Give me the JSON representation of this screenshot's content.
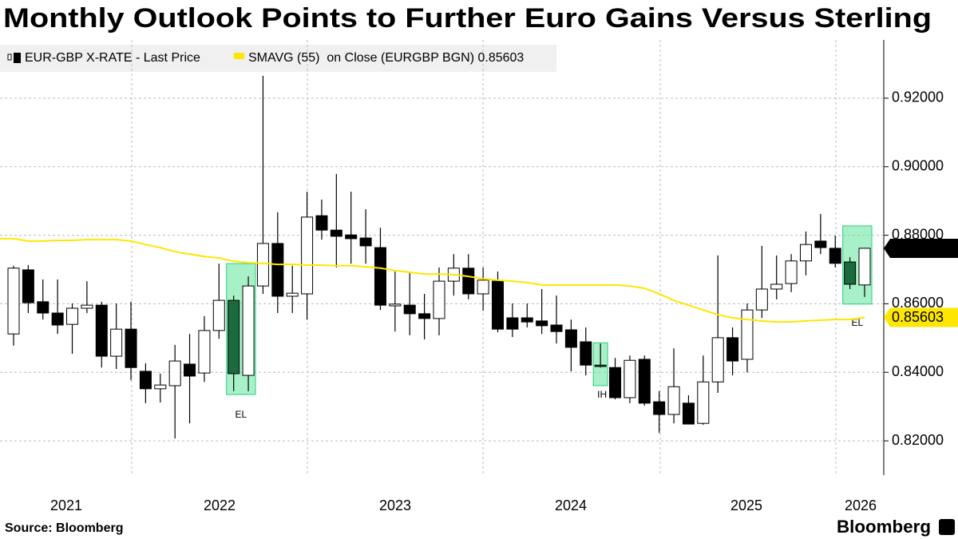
{
  "chart_data": {
    "type": "candlestick",
    "title": "Monthly Outlook Points to Further Euro Gains Versus Sterling",
    "source": "Source: Bloomberg",
    "brand": "Bloomberg",
    "xlabels": [
      "2021",
      "2022",
      "2023",
      "2024",
      "2025",
      "2026"
    ],
    "ylim": [
      0.81,
      0.937
    ],
    "yticks": [
      {
        "value": 0.82,
        "label": "0.82000"
      },
      {
        "value": 0.84,
        "label": "0.84000"
      },
      {
        "value": 0.86,
        "label": "0.86000"
      },
      {
        "value": 0.88,
        "label": "0.88000"
      },
      {
        "value": 0.9,
        "label": "0.90000"
      },
      {
        "value": 0.92,
        "label": "0.92000"
      }
    ],
    "grid": true,
    "annotations": [
      "EL",
      "IH",
      "EL"
    ],
    "series": [
      {
        "name": "EUR-GBP X-RATE - Last Price",
        "up_color": "#ffffff",
        "down_color": "#000000",
        "highlight_color": "#1c6b3c",
        "open": [
          0.8512,
          0.8699,
          0.8606,
          0.8573,
          0.854,
          0.8587,
          0.8596,
          0.8447,
          0.8526,
          0.8403,
          0.8352,
          0.8361,
          0.8424,
          0.8398,
          0.8522,
          0.861,
          0.8391,
          0.8652,
          0.8776,
          0.8622,
          0.8629,
          0.8857,
          0.8815,
          0.8801,
          0.8792,
          0.8764,
          0.8594,
          0.8596,
          0.8571,
          0.8557,
          0.8666,
          0.8704,
          0.8629,
          0.8666,
          0.8559,
          0.8559,
          0.855,
          0.8538,
          0.8524,
          0.8489,
          0.8421,
          0.8414,
          0.8326,
          0.8438,
          0.8314,
          0.8277,
          0.831,
          0.8251,
          0.8372,
          0.8501,
          0.8438,
          0.8582,
          0.8643,
          0.8659,
          0.8725,
          0.8783,
          0.8762,
          0.8722,
          0.8655
        ],
        "high": [
          0.8711,
          0.8713,
          0.8671,
          0.8671,
          0.8601,
          0.8666,
          0.8606,
          0.8601,
          0.8606,
          0.8426,
          0.8396,
          0.848,
          0.8512,
          0.8564,
          0.8717,
          0.8624,
          0.868,
          0.9265,
          0.8867,
          0.8711,
          0.8927,
          0.8904,
          0.8979,
          0.8927,
          0.8876,
          0.8822,
          0.8694,
          0.8694,
          0.8629,
          0.8706,
          0.8745,
          0.8745,
          0.8706,
          0.8694,
          0.8601,
          0.8601,
          0.8643,
          0.8624,
          0.8554,
          0.8531,
          0.8484,
          0.8442,
          0.8449,
          0.8449,
          0.8345,
          0.847,
          0.8333,
          0.8449,
          0.8741,
          0.8531,
          0.8601,
          0.8769,
          0.8741,
          0.8745,
          0.8811,
          0.8862,
          0.8799,
          0.8736,
          0.8762
        ],
        "low": [
          0.8478,
          0.8573,
          0.8554,
          0.8512,
          0.8454,
          0.8573,
          0.8414,
          0.841,
          0.8377,
          0.831,
          0.8312,
          0.8207,
          0.8251,
          0.8372,
          0.8498,
          0.8345,
          0.8345,
          0.8629,
          0.8573,
          0.8573,
          0.8554,
          0.8787,
          0.8706,
          0.8717,
          0.8717,
          0.8582,
          0.8519,
          0.8508,
          0.8496,
          0.8508,
          0.8624,
          0.8613,
          0.858,
          0.8517,
          0.8503,
          0.8531,
          0.8512,
          0.8484,
          0.8403,
          0.8391,
          0.8414,
          0.8321,
          0.831,
          0.8303,
          0.8223,
          0.8251,
          0.8249,
          0.8247,
          0.834,
          0.8391,
          0.84,
          0.8559,
          0.8613,
          0.8634,
          0.8683,
          0.8745,
          0.8706,
          0.8643,
          0.862
        ],
        "close": [
          0.8704,
          0.8603,
          0.8573,
          0.8538,
          0.8587,
          0.8596,
          0.8447,
          0.8526,
          0.8414,
          0.8352,
          0.8363,
          0.8433,
          0.8389,
          0.8522,
          0.861,
          0.8396,
          0.8652,
          0.8776,
          0.8622,
          0.8631,
          0.8853,
          0.8815,
          0.8797,
          0.879,
          0.8769,
          0.8596,
          0.8599,
          0.8571,
          0.8557,
          0.8666,
          0.8704,
          0.8629,
          0.8669,
          0.8526,
          0.8526,
          0.8547,
          0.8536,
          0.8519,
          0.8473,
          0.8421,
          0.8417,
          0.8326,
          0.8435,
          0.831,
          0.8277,
          0.8358,
          0.8249,
          0.8372,
          0.8501,
          0.8433,
          0.8582,
          0.8643,
          0.8657,
          0.8725,
          0.8773,
          0.8764,
          0.8718,
          0.8657,
          0.8762
        ],
        "last": 0.87617
      },
      {
        "name": "SMAVG (55)  on Close (EURGBP BGN) 0.85603",
        "color": "#ffe600",
        "values": [
          0.879,
          0.8783,
          0.8783,
          0.8785,
          0.8785,
          0.8787,
          0.8787,
          0.8787,
          0.8783,
          0.8773,
          0.8764,
          0.8752,
          0.8745,
          0.8738,
          0.8734,
          0.8724,
          0.872,
          0.8718,
          0.8715,
          0.8715,
          0.8713,
          0.8713,
          0.8711,
          0.8711,
          0.8708,
          0.8704,
          0.8697,
          0.8692,
          0.8687,
          0.8687,
          0.8685,
          0.868,
          0.8673,
          0.8669,
          0.8666,
          0.8662,
          0.8655,
          0.8655,
          0.8655,
          0.8655,
          0.8655,
          0.8655,
          0.8652,
          0.8645,
          0.8629,
          0.861,
          0.8596,
          0.8582,
          0.8568,
          0.8559,
          0.8554,
          0.855,
          0.8547,
          0.8547,
          0.855,
          0.8552,
          0.8554,
          0.8554,
          0.856
        ],
        "last": 0.85603
      }
    ]
  }
}
